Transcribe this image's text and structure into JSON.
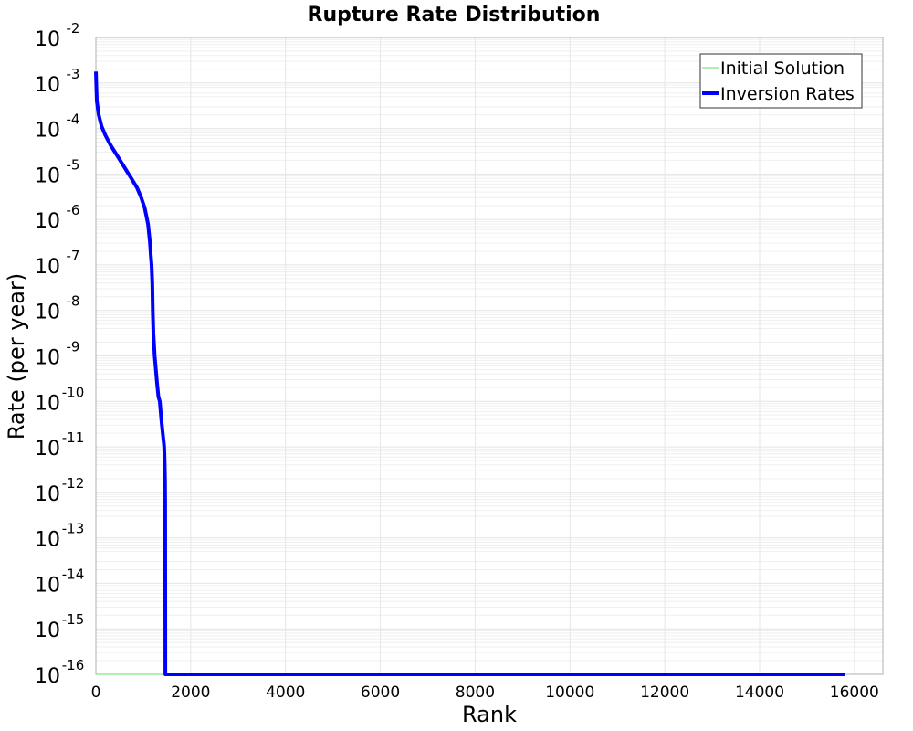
{
  "chart_data": {
    "type": "line",
    "title": "Rupture Rate Distribution",
    "xlabel": "Rank",
    "ylabel": "Rate (per year)",
    "xscale": "linear",
    "yscale": "log",
    "xlim": [
      0,
      16600
    ],
    "ylim": [
      1e-16,
      0.01
    ],
    "xticks": [
      0,
      2000,
      4000,
      6000,
      8000,
      10000,
      12000,
      14000,
      16000
    ],
    "yticks_exponents": [
      -2,
      -3,
      -4,
      -5,
      -6,
      -7,
      -8,
      -9,
      -10,
      -11,
      -12,
      -13,
      -14,
      -15,
      -16
    ],
    "grid": true,
    "legend_position": "upper right",
    "series": [
      {
        "name": "Initial Solution",
        "color": "#66dd66",
        "line_width": 1,
        "x": [
          0,
          1460
        ],
        "y_log10": [
          -16,
          -16
        ]
      },
      {
        "name": "Inversion Rates",
        "color": "#0000ff",
        "line_width": 4,
        "x": [
          0,
          20,
          60,
          120,
          200,
          300,
          450,
          600,
          750,
          866,
          950,
          1030,
          1100,
          1140,
          1160,
          1175,
          1190,
          1200,
          1213,
          1240,
          1290,
          1320,
          1348,
          1380,
          1410,
          1430,
          1440,
          1450,
          1458,
          1462,
          1463,
          1465,
          1470,
          2000,
          4000,
          6000,
          8000,
          10000,
          12000,
          14000,
          15800
        ],
        "y_log10": [
          -2.75,
          -3.4,
          -3.7,
          -3.95,
          -4.15,
          -4.35,
          -4.6,
          -4.85,
          -5.1,
          -5.3,
          -5.5,
          -5.75,
          -6.1,
          -6.5,
          -6.8,
          -7.0,
          -7.4,
          -8.0,
          -8.5,
          -9.0,
          -9.6,
          -9.9,
          -10.0,
          -10.4,
          -10.7,
          -10.9,
          -11.0,
          -11.3,
          -11.7,
          -12.2,
          -14.0,
          -16.0,
          -16.0,
          -16.0,
          -16.0,
          -16.0,
          -16.0,
          -16.0,
          -16.0,
          -16.0,
          -16.0
        ]
      }
    ]
  },
  "legend": {
    "items": [
      {
        "label": "Initial Solution"
      },
      {
        "label": "Inversion Rates"
      }
    ]
  }
}
